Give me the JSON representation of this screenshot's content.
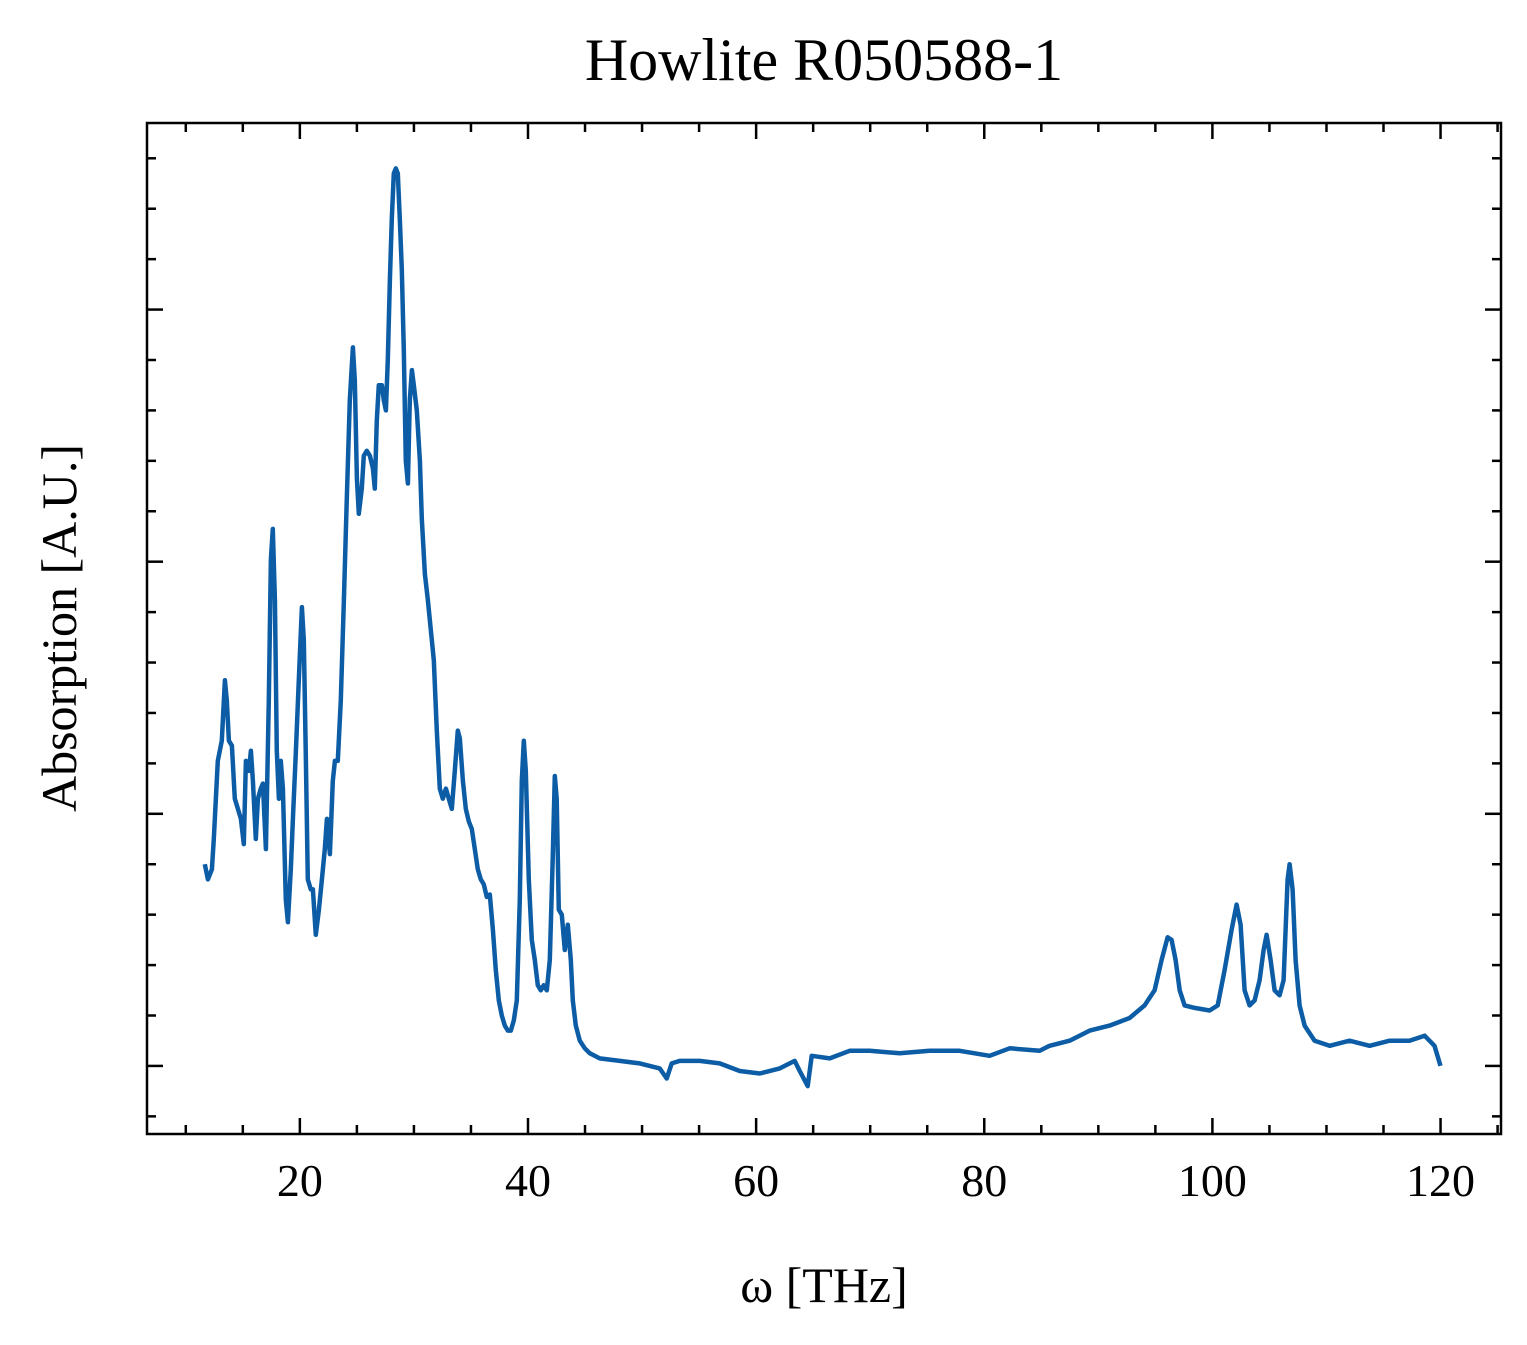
{
  "chart_data": {
    "type": "line",
    "title": "Howlite R050588-1",
    "x_label": "ω [THz]",
    "y_label": "Absorption [A.U.]",
    "xlim": [
      6.6,
      125.3
    ],
    "ylim": [
      -0.27,
      3.74
    ],
    "xticks": [
      20,
      40,
      60,
      80,
      100,
      120
    ],
    "yticks": [
      0,
      1,
      2,
      3
    ],
    "ytick_labels": false,
    "minor_ticks": true,
    "ticks_direction": "in",
    "grid": false,
    "series": [
      {
        "name": "Howlite R050588-1",
        "color": "#0c5da5",
        "x": [
          11.67,
          11.94,
          12.29,
          12.46,
          12.81,
          13.16,
          13.43,
          13.6,
          13.78,
          14.04,
          14.3,
          14.57,
          14.83,
          15.09,
          15.27,
          15.53,
          15.71,
          15.88,
          16.14,
          16.32,
          16.58,
          16.76,
          17.02,
          17.28,
          17.46,
          17.63,
          17.81,
          17.98,
          18.16,
          18.33,
          18.51,
          18.77,
          18.95,
          19.21,
          19.39,
          19.65,
          19.91,
          20.18,
          20.35,
          20.53,
          20.7,
          20.96,
          21.14,
          21.4,
          21.67,
          21.93,
          22.19,
          22.37,
          22.63,
          22.89,
          23.07,
          23.33,
          23.59,
          23.86,
          24.12,
          24.38,
          24.65,
          24.82,
          25.0,
          25.17,
          25.43,
          25.61,
          25.87,
          26.14,
          26.4,
          26.57,
          26.75,
          26.92,
          27.19,
          27.36,
          27.54,
          27.71,
          27.89,
          28.06,
          28.24,
          28.41,
          28.59,
          28.76,
          28.94,
          29.11,
          29.29,
          29.47,
          29.64,
          29.82,
          29.99,
          30.25,
          30.52,
          30.69,
          30.96,
          31.22,
          31.48,
          31.74,
          32.01,
          32.27,
          32.53,
          32.8,
          33.06,
          33.32,
          33.58,
          33.85,
          34.02,
          34.29,
          34.55,
          34.81,
          35.07,
          35.34,
          35.6,
          35.86,
          36.13,
          36.39,
          36.65,
          36.92,
          37.18,
          37.44,
          37.7,
          37.97,
          38.23,
          38.49,
          38.76,
          39.02,
          39.28,
          39.46,
          39.63,
          39.81,
          40.07,
          40.33,
          40.6,
          40.86,
          41.12,
          41.38,
          41.65,
          41.91,
          42.17,
          42.35,
          42.52,
          42.7,
          42.96,
          43.23,
          43.49,
          43.75,
          43.93,
          44.19,
          44.54,
          44.98,
          45.42,
          46.29,
          48.05,
          49.8,
          51.55,
          52.16,
          52.6,
          53.3,
          55.06,
          56.81,
          58.56,
          60.32,
          62.07,
          63.38,
          63.82,
          64.52,
          64.87,
          66.45,
          68.2,
          69.96,
          72.59,
          75.21,
          77.84,
          80.47,
          82.23,
          84.86,
          85.73,
          87.48,
          89.24,
          90.99,
          92.74,
          94.06,
          94.93,
          95.55,
          96.07,
          96.42,
          96.77,
          97.13,
          97.56,
          98.44,
          99.75,
          100.46,
          101.07,
          101.68,
          102.12,
          102.47,
          102.82,
          103.26,
          103.7,
          104.14,
          104.49,
          104.75,
          105.1,
          105.45,
          105.89,
          106.24,
          106.59,
          106.77,
          107.03,
          107.29,
          107.64,
          108.08,
          108.96,
          110.27,
          112.02,
          113.78,
          115.53,
          117.28,
          118.6,
          119.47,
          120.0
        ],
        "values": [
          0.8,
          0.74,
          0.78,
          0.9,
          1.21,
          1.29,
          1.53,
          1.45,
          1.29,
          1.27,
          1.06,
          1.02,
          0.98,
          0.88,
          1.21,
          1.17,
          1.25,
          1.13,
          0.9,
          1.06,
          1.1,
          1.12,
          0.86,
          1.45,
          2.01,
          2.13,
          1.85,
          1.25,
          1.06,
          1.21,
          1.1,
          0.66,
          0.57,
          0.78,
          0.98,
          1.25,
          1.53,
          1.82,
          1.69,
          1.21,
          0.74,
          0.7,
          0.7,
          0.52,
          0.62,
          0.74,
          0.86,
          0.98,
          0.84,
          1.13,
          1.21,
          1.21,
          1.45,
          1.85,
          2.25,
          2.64,
          2.85,
          2.72,
          2.33,
          2.19,
          2.29,
          2.42,
          2.44,
          2.42,
          2.37,
          2.29,
          2.56,
          2.7,
          2.7,
          2.64,
          2.6,
          2.8,
          3.12,
          3.36,
          3.54,
          3.56,
          3.54,
          3.36,
          3.16,
          2.84,
          2.4,
          2.31,
          2.64,
          2.76,
          2.7,
          2.6,
          2.4,
          2.17,
          1.95,
          1.85,
          1.73,
          1.61,
          1.33,
          1.1,
          1.06,
          1.1,
          1.06,
          1.02,
          1.17,
          1.33,
          1.3,
          1.13,
          1.02,
          0.97,
          0.94,
          0.86,
          0.78,
          0.74,
          0.72,
          0.67,
          0.68,
          0.54,
          0.38,
          0.26,
          0.2,
          0.16,
          0.14,
          0.14,
          0.18,
          0.26,
          0.66,
          1.13,
          1.29,
          1.17,
          0.74,
          0.5,
          0.42,
          0.32,
          0.3,
          0.32,
          0.3,
          0.42,
          0.82,
          1.15,
          1.06,
          0.62,
          0.6,
          0.46,
          0.56,
          0.42,
          0.26,
          0.16,
          0.1,
          0.07,
          0.05,
          0.03,
          0.02,
          0.01,
          -0.01,
          -0.05,
          0.01,
          0.02,
          0.02,
          0.01,
          -0.02,
          -0.03,
          -0.01,
          0.02,
          -0.02,
          -0.08,
          0.04,
          0.03,
          0.06,
          0.06,
          0.05,
          0.06,
          0.06,
          0.04,
          0.07,
          0.06,
          0.08,
          0.1,
          0.14,
          0.16,
          0.19,
          0.24,
          0.3,
          0.42,
          0.51,
          0.5,
          0.42,
          0.3,
          0.24,
          0.23,
          0.22,
          0.24,
          0.38,
          0.54,
          0.64,
          0.56,
          0.3,
          0.24,
          0.26,
          0.34,
          0.46,
          0.52,
          0.42,
          0.3,
          0.28,
          0.34,
          0.74,
          0.8,
          0.7,
          0.42,
          0.24,
          0.16,
          0.1,
          0.08,
          0.1,
          0.08,
          0.1,
          0.1,
          0.12,
          0.08,
          0.0
        ]
      }
    ]
  }
}
